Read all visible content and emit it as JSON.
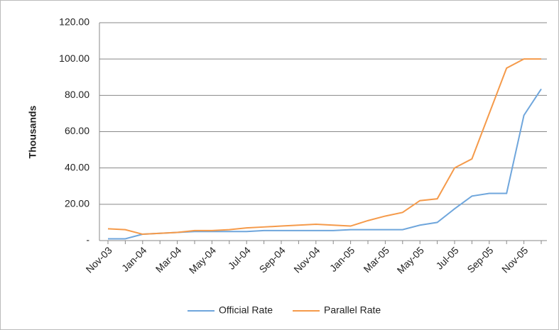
{
  "chart_data": {
    "type": "line",
    "y_label": "Thousands",
    "categories": [
      "Nov-03",
      null,
      "Jan-04",
      null,
      "Mar-04",
      null,
      "May-04",
      null,
      "Jul-04",
      null,
      "Sep-04",
      null,
      "Nov-04",
      null,
      "Jan-05",
      null,
      "Mar-05",
      null,
      "May-05",
      null,
      "Jul-05",
      null,
      "Sep-05",
      null,
      "Nov-05",
      null
    ],
    "series": [
      {
        "name": "Official Rate",
        "color": "#6fa6dc",
        "values": [
          1,
          1,
          3.5,
          4,
          4.5,
          5,
          5,
          5,
          5,
          5.5,
          5.5,
          5.5,
          5.5,
          5.5,
          6,
          6,
          6,
          6,
          8.5,
          10,
          17.5,
          24.5,
          26,
          26,
          69,
          83.5
        ]
      },
      {
        "name": "Parallel Rate",
        "color": "#f59a4a",
        "values": [
          6.5,
          6,
          3.5,
          4,
          4.5,
          5.5,
          5.5,
          6,
          7,
          7.5,
          8,
          8.5,
          9,
          8.5,
          8,
          11,
          13.5,
          15.5,
          22,
          23,
          40,
          45,
          70,
          95,
          100,
          100
        ]
      }
    ],
    "ylim": [
      0,
      120
    ],
    "yticks": [
      {
        "value": 0,
        "label": "-"
      },
      {
        "value": 20,
        "label": "20.00"
      },
      {
        "value": 40,
        "label": "40.00"
      },
      {
        "value": 60,
        "label": "60.00"
      },
      {
        "value": 80,
        "label": "80.00"
      },
      {
        "value": 100,
        "label": "100.00"
      },
      {
        "value": 120,
        "label": "120.00"
      }
    ],
    "grid": true,
    "legend": "bottom"
  }
}
